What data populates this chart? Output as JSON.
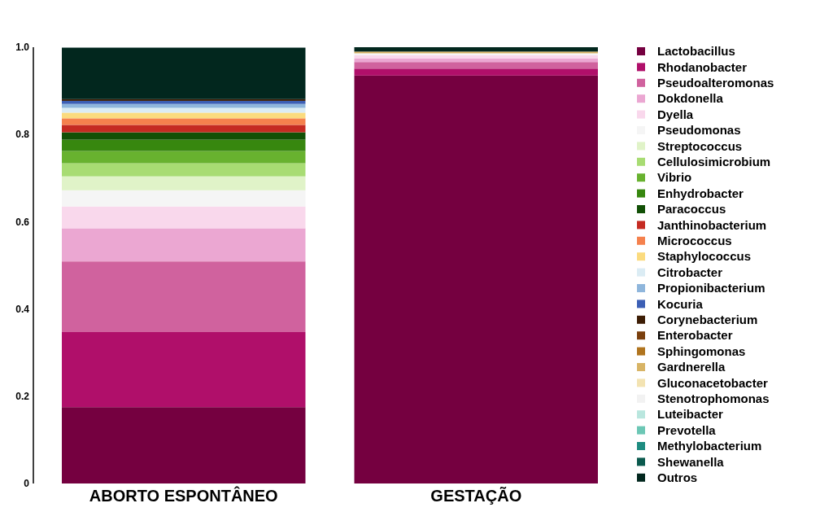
{
  "chart_data": {
    "type": "bar",
    "stacked": true,
    "categories": [
      "ABORTO ESPONTÂNEO",
      "GESTAÇÃO"
    ],
    "ylim": [
      0,
      1
    ],
    "yticks": [
      0,
      0.2,
      0.4,
      0.6,
      0.8,
      {
        "value": 1,
        "label": "1.0"
      }
    ],
    "legend": "right",
    "grid": false,
    "series": [
      {
        "name": "Lactobacillus",
        "color": "#750040",
        "values": [
          0.175,
          0.935
        ]
      },
      {
        "name": "Rhodanobacter",
        "color": "#b00f6a",
        "values": [
          0.172,
          0.016
        ]
      },
      {
        "name": "Pseudoalteromonas",
        "color": "#d0629e",
        "values": [
          0.162,
          0.015
        ]
      },
      {
        "name": "Dokdonella",
        "color": "#eba7d2",
        "values": [
          0.076,
          0.008
        ]
      },
      {
        "name": "Dyella",
        "color": "#f9d8ec",
        "values": [
          0.05,
          0.008
        ]
      },
      {
        "name": "Pseudomonas",
        "color": "#f5f5f5",
        "values": [
          0.037,
          0.004
        ]
      },
      {
        "name": "Streptococcus",
        "color": "#e0f3c8",
        "values": [
          0.032,
          0
        ]
      },
      {
        "name": "Cellulosimicrobium",
        "color": "#a8dc73",
        "values": [
          0.03,
          0
        ]
      },
      {
        "name": "Vibrio",
        "color": "#68b22f",
        "values": [
          0.028,
          0
        ]
      },
      {
        "name": "Enhydrobacter",
        "color": "#37870f",
        "values": [
          0.026,
          0
        ]
      },
      {
        "name": "Paracoccus",
        "color": "#125006",
        "values": [
          0.017,
          0
        ]
      },
      {
        "name": "Janthinobacterium",
        "color": "#c52b22",
        "values": [
          0.017,
          0
        ]
      },
      {
        "name": "Micrococcus",
        "color": "#f5814d",
        "values": [
          0.015,
          0
        ]
      },
      {
        "name": "Staphylococcus",
        "color": "#fbdb7e",
        "values": [
          0.013,
          0
        ]
      },
      {
        "name": "Citrobacter",
        "color": "#dbecf4",
        "values": [
          0.011,
          0
        ]
      },
      {
        "name": "Propionibacterium",
        "color": "#8fb6dc",
        "values": [
          0.009,
          0
        ]
      },
      {
        "name": "Kocuria",
        "color": "#3c5fb5",
        "values": [
          0.007,
          0
        ]
      },
      {
        "name": "Corynebacterium",
        "color": "#3d1d05",
        "values": [
          0.004,
          0
        ]
      },
      {
        "name": "Enterobacter",
        "color": "#7a3f0d",
        "values": [
          0,
          0
        ]
      },
      {
        "name": "Sphingomonas",
        "color": "#b0741e",
        "values": [
          0,
          null
        ]
      },
      {
        "name": "Gardnerella",
        "color": "#d8b465",
        "values": [
          0,
          0.004
        ]
      },
      {
        "name": "Gluconacetobacter",
        "color": "#f3e3b2",
        "values": [
          0,
          0
        ]
      },
      {
        "name": "Stenotrophomonas",
        "color": "#f2f2f2",
        "values": [
          0,
          0
        ]
      },
      {
        "name": "Luteibacter",
        "color": "#b9e6de",
        "values": [
          0,
          0
        ]
      },
      {
        "name": "Prevotella",
        "color": "#6cc7b5",
        "values": [
          0,
          0
        ]
      },
      {
        "name": "Methylobacterium",
        "color": "#1e8c80",
        "values": [
          0,
          0
        ]
      },
      {
        "name": "Shewanella",
        "color": "#0b5a4e",
        "values": [
          0,
          0
        ]
      },
      {
        "name": "Outros",
        "color": "#02271e",
        "values": [
          0.118,
          0.01
        ]
      }
    ]
  }
}
